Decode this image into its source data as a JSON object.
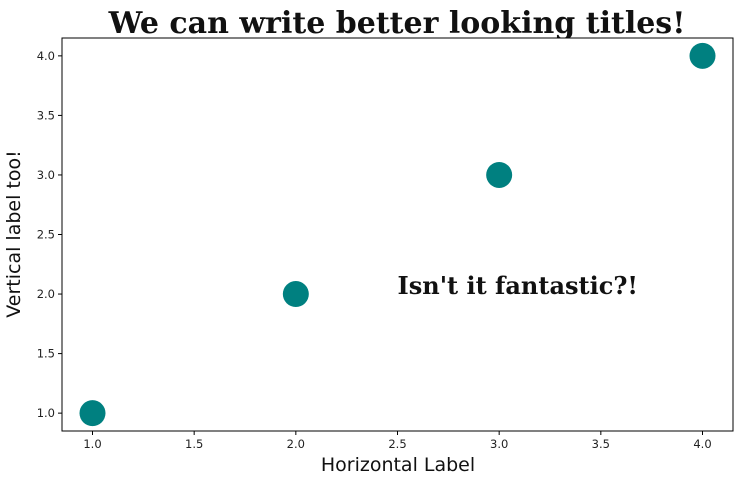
{
  "chart_data": {
    "type": "scatter",
    "title": "We can write better looking titles!",
    "xlabel": "Horizontal Label",
    "ylabel": "Vertical label too!",
    "x": [
      1.0,
      2.0,
      3.0,
      4.0
    ],
    "y": [
      1.0,
      2.0,
      3.0,
      4.0
    ],
    "xlim": [
      0.85,
      4.15
    ],
    "ylim": [
      0.85,
      4.15
    ],
    "xticks": [
      "1.0",
      "1.5",
      "2.0",
      "2.5",
      "3.0",
      "3.5",
      "4.0"
    ],
    "yticks": [
      "1.0",
      "1.5",
      "2.0",
      "2.5",
      "3.0",
      "3.5",
      "4.0"
    ],
    "marker_color": "#008080",
    "grid": false,
    "annotation": {
      "text": "Isn't it fantastic?!",
      "x": 2.5,
      "y": 2.0
    }
  }
}
